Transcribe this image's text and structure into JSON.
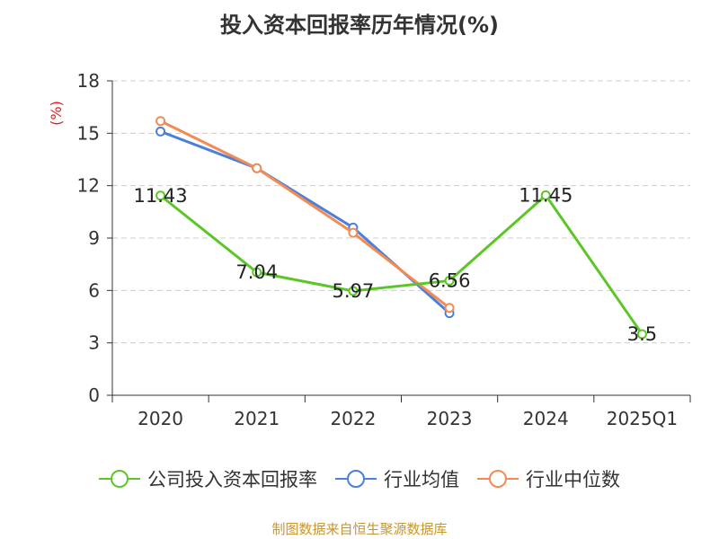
{
  "chart_data": {
    "type": "line",
    "title": "投入资本回报率历年情况(%)",
    "ylabel": "(%)",
    "xlabel": "",
    "ylim": [
      0,
      18
    ],
    "yticks": [
      0,
      3,
      6,
      9,
      12,
      15,
      18
    ],
    "categories": [
      "2020",
      "2021",
      "2022",
      "2023",
      "2024",
      "2025Q1"
    ],
    "series": [
      {
        "name": "公司投入资本回报率",
        "color": "#5cc626",
        "values": [
          11.43,
          7.04,
          5.97,
          6.56,
          11.45,
          3.5
        ],
        "labels": [
          "11.43",
          "7.04",
          "5.97",
          "6.56",
          "11.45",
          "3.5"
        ]
      },
      {
        "name": "行业均值",
        "color": "#4a7fdc",
        "values": [
          15.1,
          13.0,
          9.6,
          4.7,
          null,
          null
        ]
      },
      {
        "name": "行业中位数",
        "color": "#f28b54",
        "values": [
          15.7,
          13.0,
          9.3,
          5.0,
          null,
          null
        ]
      }
    ],
    "grid": true,
    "legend": "bottom"
  },
  "source": "制图数据来自恒生聚源数据库"
}
